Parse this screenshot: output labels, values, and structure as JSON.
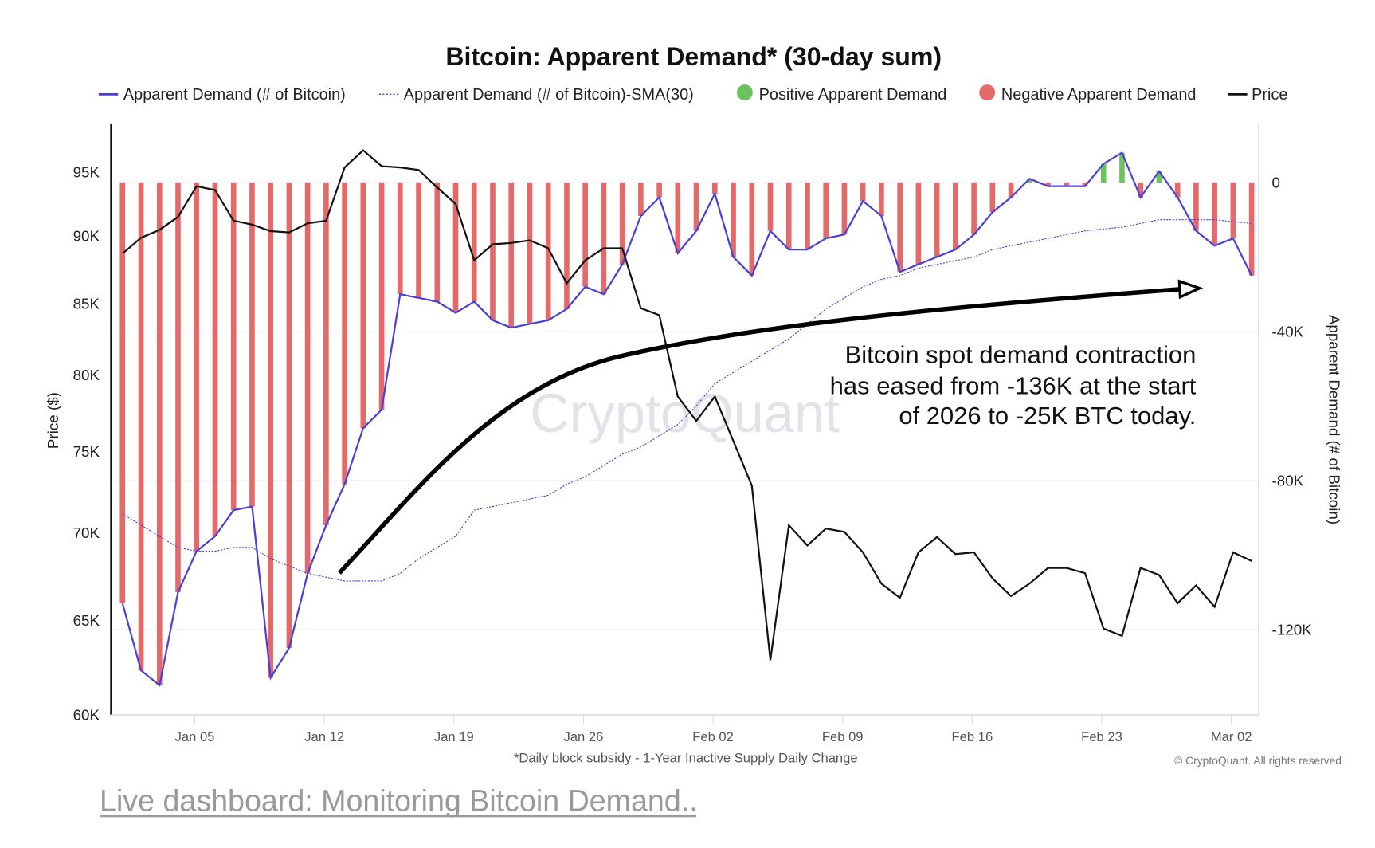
{
  "chart_data": {
    "type": "bar+line",
    "title": "Bitcoin: Apparent Demand* (30-day sum)",
    "footnote": "*Daily block subsidy - 1-Year Inactive Supply Daily Change",
    "copyright": "© CryptoQuant. All rights reserved",
    "watermark": "CryptoQuant",
    "ylabel_left": "Price ($)",
    "ylabel_right": "Apparent Demand (# of Bitcoin)",
    "left_axis": {
      "scale": "log",
      "range": [
        60000,
        98000
      ],
      "ticks": [
        60000,
        65000,
        70000,
        75000,
        80000,
        85000,
        90000,
        95000
      ],
      "tick_labels": [
        "60K",
        "65K",
        "70K",
        "75K",
        "80K",
        "85K",
        "90K",
        "95K"
      ]
    },
    "right_axis": {
      "scale": "linear",
      "range": [
        -143000,
        16000
      ],
      "ticks": [
        0,
        -40000,
        -80000,
        -120000
      ],
      "tick_labels": [
        "0",
        "-40K",
        "-80K",
        "-120K"
      ]
    },
    "x_tick_labels": [
      "Jan 05",
      "Jan 12",
      "Jan 19",
      "Jan 26",
      "Feb 02",
      "Feb 09",
      "Feb 16",
      "Feb 23",
      "Mar 02"
    ],
    "x_tick_index": [
      4,
      11,
      18,
      25,
      32,
      39,
      46,
      53,
      60
    ],
    "x": [
      "Jan 01",
      "Jan 02",
      "Jan 03",
      "Jan 04",
      "Jan 05",
      "Jan 06",
      "Jan 07",
      "Jan 08",
      "Jan 09",
      "Jan 10",
      "Jan 11",
      "Jan 12",
      "Jan 13",
      "Jan 14",
      "Jan 15",
      "Jan 16",
      "Jan 17",
      "Jan 18",
      "Jan 19",
      "Jan 20",
      "Jan 21",
      "Jan 22",
      "Jan 23",
      "Jan 24",
      "Jan 25",
      "Jan 26",
      "Jan 27",
      "Jan 28",
      "Jan 29",
      "Jan 30",
      "Jan 31",
      "Feb 01",
      "Feb 02",
      "Feb 03",
      "Feb 04",
      "Feb 05",
      "Feb 06",
      "Feb 07",
      "Feb 08",
      "Feb 09",
      "Feb 10",
      "Feb 11",
      "Feb 12",
      "Feb 13",
      "Feb 14",
      "Feb 15",
      "Feb 16",
      "Feb 17",
      "Feb 18",
      "Feb 19",
      "Feb 20",
      "Feb 21",
      "Feb 22",
      "Feb 23",
      "Feb 24",
      "Feb 25",
      "Feb 26",
      "Feb 27",
      "Feb 28",
      "Mar 01",
      "Mar 02",
      "Mar 03"
    ],
    "legend_position": "top",
    "legend": [
      {
        "label": "Apparent Demand (# of Bitcoin)",
        "marker": "line",
        "color": "#4a3fd6"
      },
      {
        "label": "Apparent Demand (# of Bitcoin)-SMA(30)",
        "marker": "dotted-line",
        "color": "#4a3fd6"
      },
      {
        "label": "Positive Apparent Demand",
        "marker": "dot",
        "color": "#6cc35e"
      },
      {
        "label": "Negative Apparent Demand",
        "marker": "dot",
        "color": "#e46a6a"
      },
      {
        "label": "Price",
        "marker": "line",
        "color": "#111111"
      }
    ],
    "series": [
      {
        "name": "Apparent Demand (# of Bitcoin)",
        "axis": "right",
        "type": "line+bar",
        "values": [
          -113000,
          -131000,
          -135000,
          -110000,
          -99000,
          -95000,
          -88000,
          -87000,
          -133000,
          -125000,
          -105000,
          -92000,
          -81000,
          -66000,
          -61000,
          -30000,
          -31000,
          -32000,
          -35000,
          -32000,
          -37000,
          -39000,
          -38000,
          -37000,
          -34000,
          -28000,
          -30000,
          -22000,
          -9000,
          -4000,
          -19000,
          -13000,
          -3000,
          -20000,
          -25000,
          -13000,
          -18000,
          -18000,
          -15000,
          -14000,
          -5000,
          -9000,
          -24000,
          -22000,
          -20000,
          -18000,
          -14000,
          -8000,
          -4000,
          1000,
          -1000,
          -1000,
          -1000,
          5000,
          8000,
          -4000,
          3000,
          -4000,
          -13000,
          -17000,
          -15000,
          -25000
        ]
      },
      {
        "name": "Apparent Demand (# of Bitcoin)-SMA(30)",
        "axis": "right",
        "type": "line",
        "values": [
          -89000,
          -92000,
          -95000,
          -98000,
          -99000,
          -99000,
          -98000,
          -98000,
          -101000,
          -103000,
          -105000,
          -106000,
          -107000,
          -107000,
          -107000,
          -105000,
          -101000,
          -98000,
          -95000,
          -88000,
          -87000,
          -86000,
          -85000,
          -84000,
          -81000,
          -79000,
          -76000,
          -73000,
          -71000,
          -68000,
          -65000,
          -60000,
          -54000,
          -51000,
          -48000,
          -45000,
          -42000,
          -38000,
          -34000,
          -31000,
          -28000,
          -26000,
          -25000,
          -23000,
          -22000,
          -21000,
          -20000,
          -18000,
          -17000,
          -16000,
          -15000,
          -14000,
          -13000,
          -12500,
          -12000,
          -11000,
          -10000,
          -10000,
          -10000,
          -10000,
          -10500,
          -11000
        ]
      },
      {
        "name": "Price",
        "axis": "left",
        "type": "line",
        "values": [
          88600,
          89800,
          90400,
          91400,
          93800,
          93500,
          91100,
          90800,
          90300,
          90200,
          90900,
          91100,
          95300,
          96700,
          95400,
          95300,
          95100,
          93700,
          92400,
          88100,
          89300,
          89400,
          89600,
          89000,
          86400,
          88100,
          89000,
          89000,
          84600,
          84100,
          78500,
          76900,
          78500,
          75600,
          72800,
          62800,
          70400,
          69200,
          70200,
          70000,
          68800,
          67000,
          66200,
          68800,
          69700,
          68700,
          68800,
          67300,
          66300,
          67000,
          67900,
          67900,
          67600,
          64500,
          64100,
          67900,
          67500,
          65900,
          66900,
          65700,
          68800,
          68300
        ]
      }
    ],
    "annotation": {
      "lines": [
        "Bitcoin spot  demand contraction",
        "has eased from -136K at the start",
        "of 2026 to -25K BTC today."
      ]
    }
  },
  "link": {
    "text": "Live dashboard: Monitoring Bitcoin Demand.."
  },
  "colors": {
    "negative": "#e46a6a",
    "positive": "#6cc35e",
    "demand": "#4a3fd6",
    "price": "#111111",
    "link": "#999999",
    "watermark": "#e2e3e8"
  }
}
